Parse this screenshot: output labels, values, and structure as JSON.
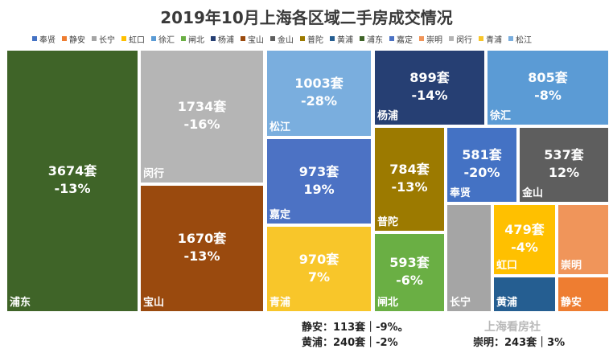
{
  "chart_data": {
    "type": "treemap",
    "title": "2019年10月上海各区域二手房成交情况",
    "legend": [
      "奉贤",
      "静安",
      "长宁",
      "虹口",
      "徐汇",
      "闸北",
      "杨浦",
      "宝山",
      "金山",
      "普陀",
      "黄浦",
      "浦东",
      "嘉定",
      "崇明",
      "闵行",
      "青浦",
      "松江"
    ],
    "legend_position": "top",
    "items": [
      {
        "name": "浦东",
        "value": 3674,
        "value_label": "3674套",
        "change": "-13%",
        "color": "#3f6428"
      },
      {
        "name": "闵行",
        "value": 1734,
        "value_label": "1734套",
        "change": "-16%",
        "color": "#b5b5b5"
      },
      {
        "name": "宝山",
        "value": 1670,
        "value_label": "1670套",
        "change": "-13%",
        "color": "#9a4a0e"
      },
      {
        "name": "松江",
        "value": 1003,
        "value_label": "1003套",
        "change": "-28%",
        "color": "#7aaede"
      },
      {
        "name": "嘉定",
        "value": 973,
        "value_label": "973套",
        "change": "19%",
        "color": "#4c72c4"
      },
      {
        "name": "青浦",
        "value": 970,
        "value_label": "970套",
        "change": "7%",
        "color": "#f8c62a"
      },
      {
        "name": "杨浦",
        "value": 899,
        "value_label": "899套",
        "change": "-14%",
        "color": "#263f73"
      },
      {
        "name": "徐汇",
        "value": 805,
        "value_label": "805套",
        "change": "-8%",
        "color": "#5b9bd5"
      },
      {
        "name": "普陀",
        "value": 784,
        "value_label": "784套",
        "change": "-13%",
        "color": "#9c7a00"
      },
      {
        "name": "闸北",
        "value": 593,
        "value_label": "593套",
        "change": "-6%",
        "color": "#6aaf44"
      },
      {
        "name": "奉贤",
        "value": 581,
        "value_label": "581套",
        "change": "-20%",
        "color": "#4472c4"
      },
      {
        "name": "金山",
        "value": 537,
        "value_label": "537套",
        "change": "12%",
        "color": "#5e5e5e"
      },
      {
        "name": "长宁",
        "value": null,
        "value_label": "",
        "change": "",
        "color": "#a5a5a5"
      },
      {
        "name": "虹口",
        "value": 479,
        "value_label": "479套",
        "change": "-4%",
        "color": "#ffc000"
      },
      {
        "name": "黄浦",
        "value": 240,
        "value_label": "",
        "change": "",
        "color": "#255e91"
      },
      {
        "name": "崇明",
        "value": 243,
        "value_label": "",
        "change": "",
        "color": "#f0955a"
      },
      {
        "name": "静安",
        "value": 113,
        "value_label": "",
        "change": "",
        "color": "#ee7d31"
      }
    ]
  },
  "legend_colors": {
    "奉贤": "#4472c4",
    "静安": "#ee7d31",
    "长宁": "#a5a5a5",
    "虹口": "#ffc000",
    "徐汇": "#5b9bd5",
    "闸北": "#6aaf44",
    "杨浦": "#263f73",
    "宝山": "#9a4a0e",
    "金山": "#5e5e5e",
    "普陀": "#9c7a00",
    "黄浦": "#255e91",
    "浦东": "#3f6428",
    "嘉定": "#4c72c4",
    "崇明": "#f0955a",
    "闵行": "#b5b5b5",
    "青浦": "#f8c62a",
    "松江": "#7aaede"
  },
  "notes": {
    "jingan": "静安：113套｜-9%。",
    "huangpu": "黄浦：240套｜-2%",
    "chongming": "崇明：243套｜3%"
  },
  "watermark": "上海看房社"
}
